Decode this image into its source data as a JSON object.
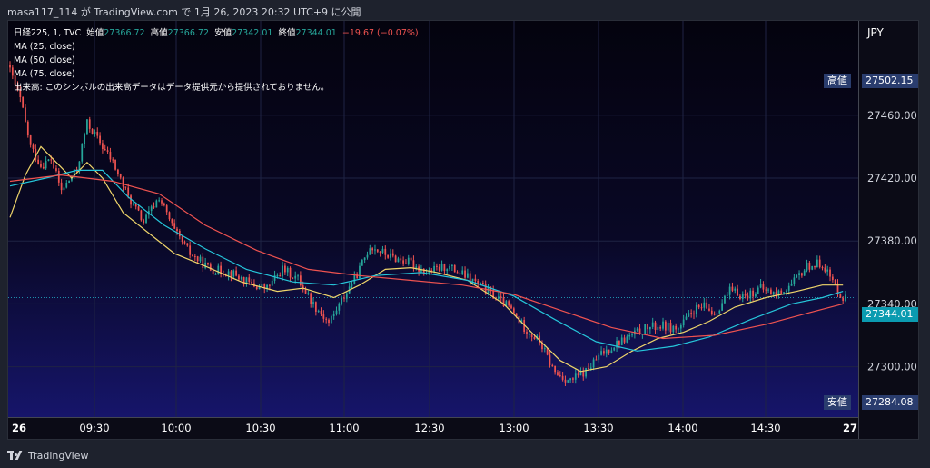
{
  "header": {
    "publisher": "masa117_114 が TradingView.com で 1月 26, 2023 20:32 UTC+9 に公開"
  },
  "legend": {
    "symbol": "日経225, 1, TVC",
    "open_label": "始値",
    "open": "27366.72",
    "high_label": "高値",
    "high": "27366.72",
    "low_label": "安値",
    "low": "27342.01",
    "close_label": "終値",
    "close": "27344.01",
    "change": "−19.67 (−0.07%)",
    "ma25": "MA (25, close)",
    "ma50": "MA (50, close)",
    "ma75": "MA (75, close)",
    "volume_note": "出来高: このシンボルの出来高データはデータ提供元から提供されておりません。"
  },
  "axis": {
    "currency": "JPY",
    "high_tag": "高値",
    "high_value": "27502.15",
    "low_tag": "安値",
    "low_value": "27284.08",
    "current_value": "27344.01"
  },
  "footer": {
    "brand": "TradingView"
  },
  "colors": {
    "up": "#26a69a",
    "down": "#ef5350",
    "ma25": "#f0d66b",
    "ma50": "#26c6da",
    "ma75": "#ef5350",
    "grid": "#1f2344"
  },
  "chart_data": {
    "type": "candlestick",
    "interval": "1",
    "ylim": [
      27268,
      27520
    ],
    "y_ticks": [
      27300,
      27340,
      27380,
      27420,
      27460
    ],
    "x_ticks": [
      "26",
      "09:30",
      "10:00",
      "10:30",
      "11:00",
      "12:30",
      "13:00",
      "13:30",
      "14:00",
      "14:30",
      "27"
    ],
    "high": 27502.15,
    "low": 27284.08,
    "last": 27344.01,
    "price_path": [
      [
        0,
        27488
      ],
      [
        4,
        27470
      ],
      [
        8,
        27440
      ],
      [
        12,
        27428
      ],
      [
        16,
        27432
      ],
      [
        20,
        27412
      ],
      [
        26,
        27425
      ],
      [
        30,
        27455
      ],
      [
        34,
        27445
      ],
      [
        40,
        27430
      ],
      [
        46,
        27408
      ],
      [
        52,
        27392
      ],
      [
        58,
        27408
      ],
      [
        64,
        27386
      ],
      [
        70,
        27372
      ],
      [
        78,
        27362
      ],
      [
        86,
        27360
      ],
      [
        94,
        27352
      ],
      [
        100,
        27350
      ],
      [
        106,
        27362
      ],
      [
        112,
        27356
      ],
      [
        118,
        27340
      ],
      [
        124,
        27328
      ],
      [
        130,
        27345
      ],
      [
        136,
        27362
      ],
      [
        140,
        27377
      ],
      [
        148,
        27370
      ],
      [
        156,
        27366
      ],
      [
        162,
        27360
      ],
      [
        170,
        27364
      ],
      [
        178,
        27357
      ],
      [
        186,
        27348
      ],
      [
        194,
        27338
      ],
      [
        200,
        27325
      ],
      [
        206,
        27316
      ],
      [
        212,
        27296
      ],
      [
        218,
        27291
      ],
      [
        224,
        27297
      ],
      [
        230,
        27308
      ],
      [
        236,
        27315
      ],
      [
        242,
        27320
      ],
      [
        248,
        27325
      ],
      [
        254,
        27326
      ],
      [
        260,
        27324
      ],
      [
        266,
        27336
      ],
      [
        270,
        27338
      ],
      [
        274,
        27334
      ],
      [
        280,
        27348
      ],
      [
        286,
        27345
      ],
      [
        292,
        27350
      ],
      [
        298,
        27346
      ],
      [
        304,
        27352
      ],
      [
        310,
        27364
      ],
      [
        316,
        27366
      ],
      [
        320,
        27354
      ],
      [
        324,
        27344
      ]
    ],
    "series": [
      {
        "name": "MA (25, close)",
        "color": "#f0d66b",
        "values": [
          [
            0,
            27395
          ],
          [
            6,
            27422
          ],
          [
            12,
            27440
          ],
          [
            18,
            27430
          ],
          [
            24,
            27420
          ],
          [
            30,
            27430
          ],
          [
            36,
            27420
          ],
          [
            44,
            27398
          ],
          [
            54,
            27385
          ],
          [
            64,
            27372
          ],
          [
            76,
            27364
          ],
          [
            90,
            27354
          ],
          [
            104,
            27348
          ],
          [
            114,
            27350
          ],
          [
            126,
            27344
          ],
          [
            136,
            27352
          ],
          [
            146,
            27362
          ],
          [
            156,
            27363
          ],
          [
            166,
            27360
          ],
          [
            178,
            27355
          ],
          [
            192,
            27340
          ],
          [
            204,
            27320
          ],
          [
            214,
            27304
          ],
          [
            222,
            27297
          ],
          [
            232,
            27300
          ],
          [
            242,
            27310
          ],
          [
            252,
            27318
          ],
          [
            262,
            27322
          ],
          [
            272,
            27329
          ],
          [
            282,
            27338
          ],
          [
            294,
            27344
          ],
          [
            306,
            27348
          ],
          [
            316,
            27352
          ],
          [
            324,
            27352
          ]
        ]
      },
      {
        "name": "MA (50, close)",
        "color": "#26c6da",
        "values": [
          [
            0,
            27415
          ],
          [
            14,
            27420
          ],
          [
            26,
            27425
          ],
          [
            36,
            27425
          ],
          [
            46,
            27408
          ],
          [
            60,
            27390
          ],
          [
            76,
            27375
          ],
          [
            92,
            27362
          ],
          [
            110,
            27354
          ],
          [
            126,
            27352
          ],
          [
            142,
            27358
          ],
          [
            160,
            27360
          ],
          [
            178,
            27355
          ],
          [
            196,
            27345
          ],
          [
            212,
            27330
          ],
          [
            228,
            27316
          ],
          [
            244,
            27310
          ],
          [
            258,
            27313
          ],
          [
            272,
            27319
          ],
          [
            288,
            27330
          ],
          [
            304,
            27340
          ],
          [
            316,
            27344
          ],
          [
            324,
            27348
          ]
        ]
      },
      {
        "name": "MA (75, close)",
        "color": "#ef5350",
        "values": [
          [
            0,
            27418
          ],
          [
            20,
            27422
          ],
          [
            40,
            27418
          ],
          [
            58,
            27410
          ],
          [
            76,
            27390
          ],
          [
            96,
            27374
          ],
          [
            116,
            27362
          ],
          [
            136,
            27358
          ],
          [
            156,
            27355
          ],
          [
            176,
            27352
          ],
          [
            196,
            27346
          ],
          [
            214,
            27336
          ],
          [
            234,
            27325
          ],
          [
            254,
            27318
          ],
          [
            274,
            27320
          ],
          [
            294,
            27327
          ],
          [
            310,
            27334
          ],
          [
            324,
            27340
          ]
        ]
      }
    ]
  }
}
